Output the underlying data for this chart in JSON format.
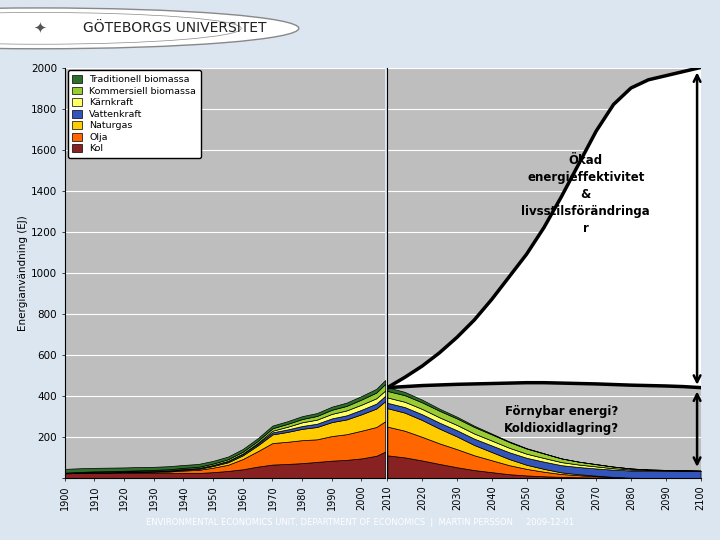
{
  "ylabel": "Energianvändning (EJ)",
  "ylim": [
    0,
    2000
  ],
  "yticks": [
    0,
    200,
    400,
    600,
    800,
    1000,
    1200,
    1400,
    1600,
    1800,
    2000
  ],
  "plot_bg": "#bebebe",
  "header_bg": "#dce6f1",
  "footer_bg": "#1f3864",
  "legend_labels": [
    "Traditionell biomassa",
    "Kommersiell biomassa",
    "Kärnkraft",
    "Vattenkraft",
    "Naturgas",
    "Olja",
    "Kol"
  ],
  "colors": {
    "trad_biomass": "#2d6e2d",
    "comm_biomass": "#99cc33",
    "nuclear": "#ffff66",
    "hydro": "#3355bb",
    "gas": "#ffcc00",
    "oil": "#ff6600",
    "coal": "#882222"
  },
  "hist_years": [
    1900,
    1905,
    1910,
    1915,
    1920,
    1925,
    1930,
    1935,
    1940,
    1945,
    1950,
    1955,
    1960,
    1965,
    1970,
    1975,
    1980,
    1985,
    1990,
    1995,
    2000,
    2005,
    2008
  ],
  "hist_kol": [
    22,
    24,
    25,
    24,
    25,
    24,
    24,
    23,
    24,
    24,
    28,
    34,
    42,
    55,
    65,
    68,
    72,
    78,
    84,
    88,
    95,
    108,
    128
  ],
  "hist_olja": [
    1,
    2,
    2,
    3,
    4,
    5,
    6,
    8,
    12,
    15,
    22,
    30,
    50,
    75,
    105,
    108,
    112,
    110,
    120,
    125,
    135,
    140,
    148
  ],
  "hist_gas": [
    0,
    0,
    1,
    1,
    1,
    2,
    2,
    3,
    4,
    5,
    8,
    12,
    18,
    28,
    42,
    48,
    55,
    60,
    68,
    72,
    80,
    90,
    98
  ],
  "hist_hydro": [
    1,
    1,
    1,
    2,
    2,
    2,
    3,
    3,
    4,
    4,
    5,
    6,
    7,
    8,
    10,
    12,
    14,
    16,
    18,
    20,
    22,
    24,
    26
  ],
  "hist_nuclear": [
    0,
    0,
    0,
    0,
    0,
    0,
    0,
    0,
    0,
    0,
    0,
    1,
    2,
    4,
    8,
    13,
    18,
    20,
    22,
    24,
    25,
    26,
    26
  ],
  "hist_comm_bio": [
    2,
    2,
    3,
    3,
    3,
    4,
    4,
    5,
    5,
    6,
    7,
    8,
    9,
    10,
    12,
    14,
    16,
    18,
    20,
    22,
    25,
    28,
    32
  ],
  "hist_trad_bio": [
    18,
    18,
    17,
    17,
    16,
    16,
    15,
    15,
    14,
    14,
    13,
    13,
    13,
    13,
    13,
    13,
    14,
    14,
    15,
    16,
    17,
    18,
    19
  ],
  "fut_years": [
    2010,
    2015,
    2020,
    2025,
    2030,
    2035,
    2040,
    2045,
    2050,
    2055,
    2060,
    2065,
    2070,
    2075,
    2080,
    2085,
    2090,
    2095,
    2100
  ],
  "fut_kol": [
    110,
    100,
    85,
    68,
    52,
    38,
    28,
    18,
    12,
    8,
    5,
    3,
    2,
    1,
    0,
    0,
    0,
    0,
    0
  ],
  "fut_olja": [
    140,
    130,
    115,
    100,
    88,
    72,
    58,
    44,
    32,
    22,
    14,
    10,
    6,
    3,
    1,
    0,
    0,
    0,
    0
  ],
  "fut_gas": [
    90,
    88,
    82,
    72,
    62,
    50,
    40,
    30,
    20,
    14,
    8,
    5,
    3,
    1,
    0,
    0,
    0,
    0,
    0
  ],
  "fut_hydro": [
    26,
    27,
    28,
    29,
    30,
    31,
    32,
    33,
    34,
    35,
    35,
    35,
    35,
    35,
    35,
    35,
    35,
    35,
    35
  ],
  "fut_nuclear": [
    26,
    26,
    26,
    26,
    26,
    25,
    24,
    22,
    20,
    18,
    15,
    12,
    10,
    7,
    5,
    3,
    2,
    1,
    0
  ],
  "fut_comm_bio": [
    32,
    32,
    32,
    32,
    32,
    32,
    30,
    28,
    25,
    22,
    18,
    14,
    11,
    8,
    5,
    3,
    2,
    1,
    0
  ],
  "fut_trad_bio": [
    18,
    16,
    13,
    10,
    8,
    6,
    4,
    3,
    2,
    1,
    0,
    0,
    0,
    0,
    0,
    0,
    0,
    0,
    0
  ],
  "fut_scenario_top": [
    440,
    445,
    450,
    453,
    456,
    458,
    460,
    462,
    464,
    464,
    462,
    460,
    458,
    455,
    452,
    450,
    448,
    445,
    440
  ],
  "fut_bau": [
    440,
    490,
    545,
    610,
    685,
    770,
    870,
    980,
    1090,
    1220,
    1370,
    1530,
    1690,
    1820,
    1900,
    1940,
    1960,
    1980,
    2000
  ],
  "footer_text": "ENVIRONMENTAL ECONOMICS UNIT, DEPARTMENT OF ECONOMICS  |  MARTIN PERSSON     2009-12-01",
  "uni_text": "GÖTEBORGS UNIVERSITET",
  "annotation1": "Ökad\nenergieffektivitet\n&\nlivsstilsförändringa\nr",
  "annotation2": "Förnybar energi?\nKoldioxidlagring?"
}
